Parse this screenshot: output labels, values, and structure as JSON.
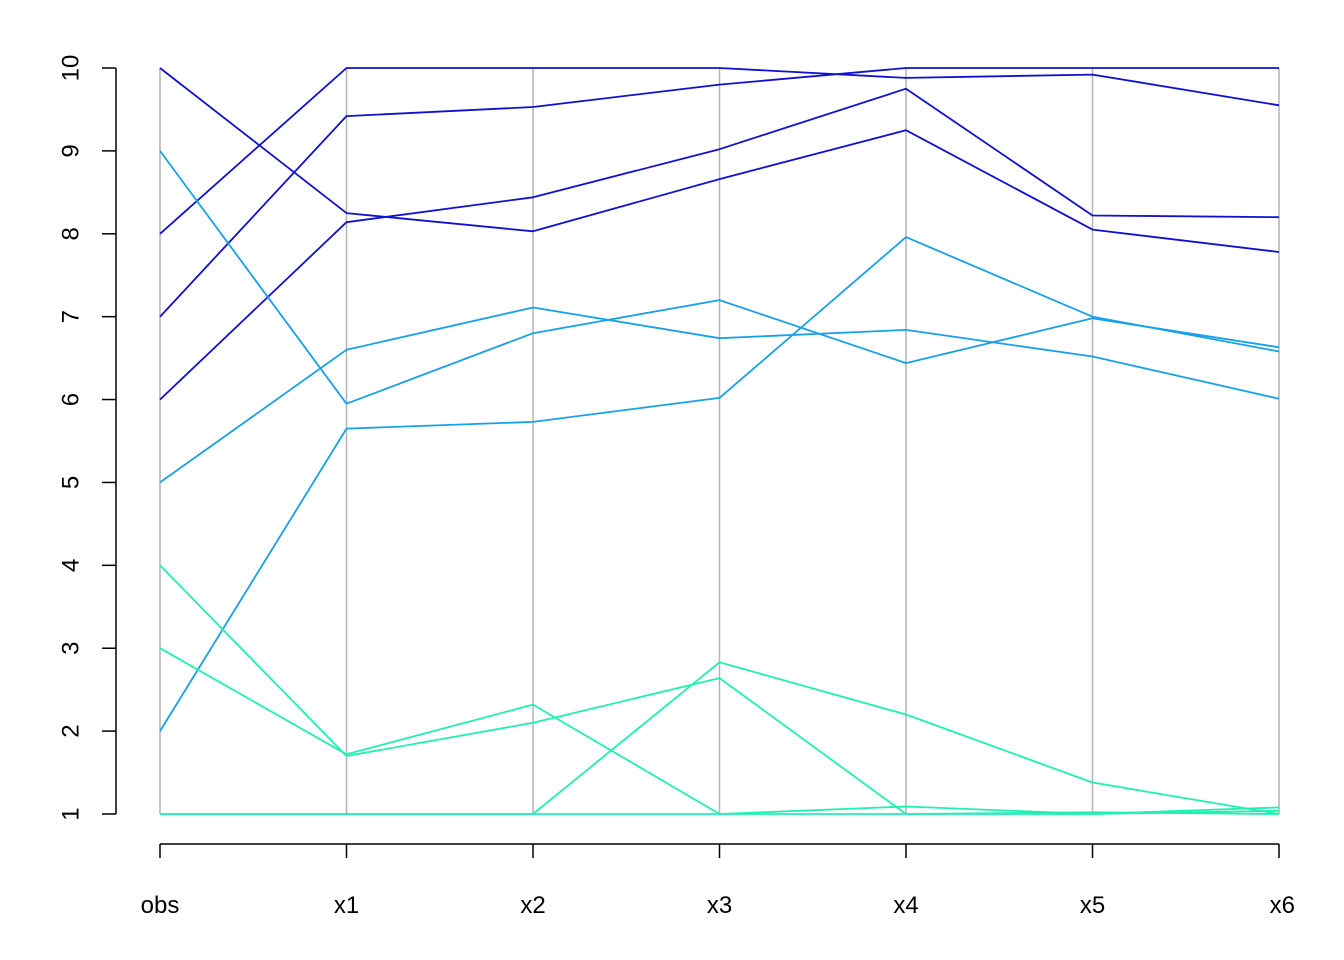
{
  "chart_data": {
    "type": "line",
    "subtype": "parallel-coordinates",
    "title": "",
    "xlabel": "",
    "ylabel": "",
    "categories": [
      "obs",
      "x1",
      "x2",
      "x3",
      "x4",
      "x5",
      "x6"
    ],
    "y_ticks": [
      1,
      2,
      3,
      4,
      5,
      6,
      7,
      8,
      9,
      10
    ],
    "ylim": [
      1,
      10
    ],
    "grid": "vertical axis lines at each category",
    "legend": "none",
    "colors": {
      "axis_line": "#b3b3b3",
      "axis": "#000000",
      "high_group": "#1010d0",
      "mid_group": "#18a0e8",
      "low_group": "#20f0b0"
    },
    "series": [
      {
        "group": "high",
        "values": [
          10,
          8.25,
          8.03,
          8.66,
          9.25,
          8.05,
          7.78
        ]
      },
      {
        "group": "high",
        "values": [
          8,
          10,
          10,
          10,
          9.88,
          9.92,
          9.55
        ]
      },
      {
        "group": "high",
        "values": [
          7,
          9.42,
          9.53,
          9.8,
          10,
          10,
          10
        ]
      },
      {
        "group": "high",
        "values": [
          6,
          8.14,
          8.44,
          9.02,
          9.75,
          8.22,
          8.2
        ]
      },
      {
        "group": "mid",
        "values": [
          9,
          5.95,
          6.8,
          7.2,
          6.44,
          6.98,
          6.63
        ]
      },
      {
        "group": "mid",
        "values": [
          5,
          6.6,
          7.11,
          6.74,
          6.84,
          6.52,
          6.01
        ]
      },
      {
        "group": "mid",
        "values": [
          2,
          5.65,
          5.73,
          6.02,
          7.96,
          7.0,
          6.58
        ]
      },
      {
        "group": "low",
        "values": [
          4,
          1.7,
          2.1,
          2.64,
          1.0,
          1.0,
          1.08
        ]
      },
      {
        "group": "low",
        "values": [
          3,
          1.72,
          2.32,
          1.0,
          1.0,
          1.02,
          1.0
        ]
      },
      {
        "group": "low",
        "values": [
          1,
          1.0,
          1.0,
          2.83,
          2.2,
          1.38,
          1.0
        ]
      },
      {
        "group": "low",
        "values": [
          1,
          1.0,
          1.0,
          1.0,
          1.09,
          1.0,
          1.04
        ]
      }
    ]
  }
}
